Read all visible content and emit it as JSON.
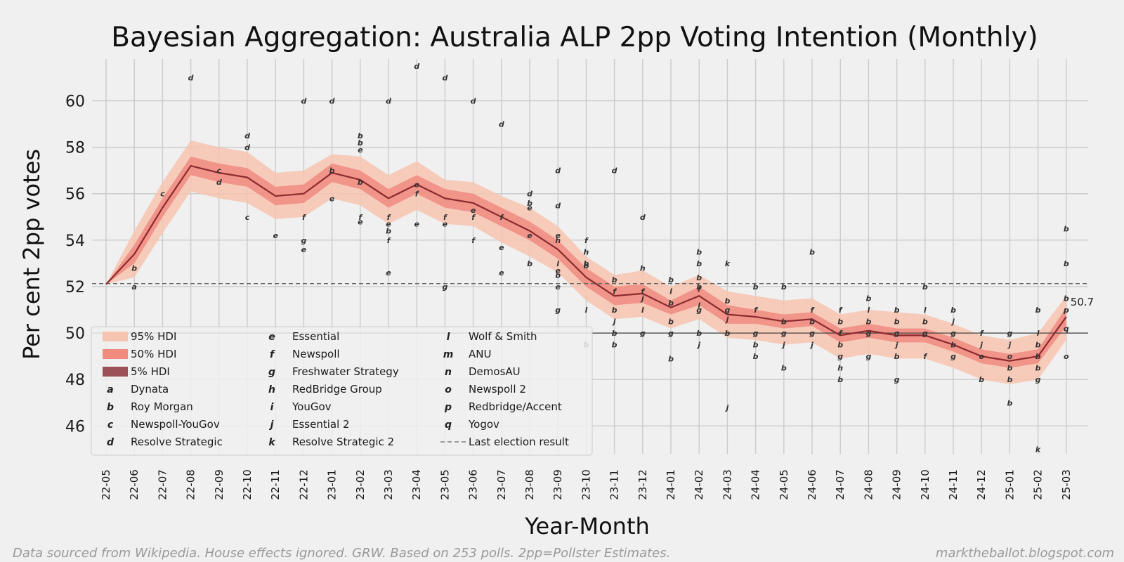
{
  "chart_data": {
    "type": "line",
    "title": "Bayesian Aggregation: Australia ALP 2pp Voting Intention (Monthly)",
    "xlabel": "Year-Month",
    "ylabel": "Per cent 2pp votes",
    "ylim": [
      44.8,
      61.8
    ],
    "yticks": [
      46,
      48,
      50,
      52,
      54,
      56,
      58,
      60
    ],
    "grid": true,
    "legend_position": "lower-left",
    "categories": [
      "22-05",
      "22-06",
      "22-07",
      "22-08",
      "22-09",
      "22-10",
      "22-11",
      "22-12",
      "23-01",
      "23-02",
      "23-03",
      "23-04",
      "23-05",
      "23-06",
      "23-07",
      "23-08",
      "23-09",
      "23-10",
      "23-11",
      "23-12",
      "24-01",
      "24-02",
      "24-03",
      "24-04",
      "24-05",
      "24-06",
      "24-07",
      "24-08",
      "24-09",
      "24-10",
      "24-11",
      "24-12",
      "25-01",
      "25-02",
      "25-03"
    ],
    "median": [
      52.1,
      53.4,
      55.4,
      57.2,
      56.9,
      56.7,
      55.9,
      56.0,
      56.9,
      56.6,
      55.8,
      56.4,
      55.8,
      55.6,
      55.0,
      54.4,
      53.6,
      52.4,
      51.6,
      51.7,
      51.1,
      51.6,
      50.8,
      50.7,
      50.5,
      50.6,
      49.9,
      50.1,
      49.9,
      49.9,
      49.5,
      49.0,
      48.8,
      49.0,
      50.7
    ],
    "hdi95_low": [
      52.1,
      52.4,
      54.3,
      56.1,
      55.8,
      55.6,
      54.9,
      55.0,
      55.8,
      55.5,
      54.7,
      55.3,
      54.7,
      54.6,
      53.9,
      53.3,
      52.6,
      51.4,
      50.6,
      50.7,
      50.2,
      50.6,
      49.8,
      49.7,
      49.5,
      49.6,
      48.9,
      49.1,
      48.9,
      48.9,
      48.5,
      48.0,
      47.8,
      48.0,
      49.7
    ],
    "hdi95_high": [
      52.1,
      54.4,
      56.5,
      58.3,
      58.0,
      57.8,
      56.9,
      57.0,
      57.7,
      57.6,
      56.8,
      57.4,
      56.6,
      56.5,
      55.9,
      55.4,
      54.6,
      53.3,
      52.5,
      52.7,
      52.0,
      52.5,
      51.8,
      51.6,
      51.4,
      51.5,
      50.8,
      51.0,
      50.9,
      50.8,
      50.4,
      49.9,
      49.7,
      50.0,
      51.6
    ],
    "hdi50_low": [
      52.1,
      53.0,
      55.0,
      56.8,
      56.5,
      56.3,
      55.5,
      55.6,
      56.5,
      56.2,
      55.4,
      56.0,
      55.4,
      55.2,
      54.6,
      54.0,
      53.2,
      52.0,
      51.2,
      51.3,
      50.8,
      51.2,
      50.4,
      50.4,
      50.2,
      50.3,
      49.6,
      49.8,
      49.6,
      49.6,
      49.2,
      48.7,
      48.5,
      48.7,
      50.3
    ],
    "hdi50_high": [
      52.1,
      53.8,
      55.8,
      57.6,
      57.3,
      57.1,
      56.3,
      56.4,
      57.3,
      57.0,
      56.2,
      56.8,
      56.2,
      56.0,
      55.4,
      54.8,
      54.0,
      52.8,
      52.0,
      52.1,
      51.4,
      52.0,
      51.2,
      51.0,
      50.8,
      50.9,
      50.2,
      50.4,
      50.2,
      50.2,
      49.8,
      49.3,
      49.1,
      49.3,
      51.1
    ],
    "last_election": 52.13,
    "reference_line": 50,
    "end_label": "50.7",
    "polls": [
      {
        "i": 1,
        "y": 52.0,
        "c": "a"
      },
      {
        "i": 1,
        "y": 52.8,
        "c": "b"
      },
      {
        "i": 2,
        "y": 56.0,
        "c": "c"
      },
      {
        "i": 3,
        "y": 61.0,
        "c": "d"
      },
      {
        "i": 4,
        "y": 57.0,
        "c": "c"
      },
      {
        "i": 4,
        "y": 56.5,
        "c": "d"
      },
      {
        "i": 5,
        "y": 58.5,
        "c": "d"
      },
      {
        "i": 5,
        "y": 58.0,
        "c": "d"
      },
      {
        "i": 5,
        "y": 55.0,
        "c": "c"
      },
      {
        "i": 6,
        "y": 54.2,
        "c": "e"
      },
      {
        "i": 7,
        "y": 60.0,
        "c": "d"
      },
      {
        "i": 7,
        "y": 55.0,
        "c": "f"
      },
      {
        "i": 7,
        "y": 54.0,
        "c": "g"
      },
      {
        "i": 7,
        "y": 53.6,
        "c": "e"
      },
      {
        "i": 8,
        "y": 60.0,
        "c": "d"
      },
      {
        "i": 8,
        "y": 57.0,
        "c": "b"
      },
      {
        "i": 8,
        "y": 55.8,
        "c": "e"
      },
      {
        "i": 9,
        "y": 58.5,
        "c": "b"
      },
      {
        "i": 9,
        "y": 58.2,
        "c": "b"
      },
      {
        "i": 9,
        "y": 57.9,
        "c": "e"
      },
      {
        "i": 9,
        "y": 56.5,
        "c": "b"
      },
      {
        "i": 9,
        "y": 55.0,
        "c": "f"
      },
      {
        "i": 9,
        "y": 54.8,
        "c": "e"
      },
      {
        "i": 10,
        "y": 60.0,
        "c": "d"
      },
      {
        "i": 10,
        "y": 55.0,
        "c": "f"
      },
      {
        "i": 10,
        "y": 54.7,
        "c": "e"
      },
      {
        "i": 10,
        "y": 54.4,
        "c": "b"
      },
      {
        "i": 10,
        "y": 54.0,
        "c": "f"
      },
      {
        "i": 10,
        "y": 52.6,
        "c": "e"
      },
      {
        "i": 11,
        "y": 61.5,
        "c": "d"
      },
      {
        "i": 11,
        "y": 56.4,
        "c": "e"
      },
      {
        "i": 11,
        "y": 56.0,
        "c": "f"
      },
      {
        "i": 11,
        "y": 54.7,
        "c": "e"
      },
      {
        "i": 12,
        "y": 61.0,
        "c": "d"
      },
      {
        "i": 12,
        "y": 55.0,
        "c": "f"
      },
      {
        "i": 12,
        "y": 54.7,
        "c": "e"
      },
      {
        "i": 12,
        "y": 52.0,
        "c": "g"
      },
      {
        "i": 13,
        "y": 60.0,
        "c": "d"
      },
      {
        "i": 13,
        "y": 55.3,
        "c": "e"
      },
      {
        "i": 13,
        "y": 55.0,
        "c": "f"
      },
      {
        "i": 13,
        "y": 54.0,
        "c": "f"
      },
      {
        "i": 14,
        "y": 59.0,
        "c": "d"
      },
      {
        "i": 14,
        "y": 55.0,
        "c": "f"
      },
      {
        "i": 14,
        "y": 53.7,
        "c": "e"
      },
      {
        "i": 14,
        "y": 52.6,
        "c": "e"
      },
      {
        "i": 15,
        "y": 56.0,
        "c": "d"
      },
      {
        "i": 15,
        "y": 55.6,
        "c": "b"
      },
      {
        "i": 15,
        "y": 55.4,
        "c": "e"
      },
      {
        "i": 15,
        "y": 54.2,
        "c": "e"
      },
      {
        "i": 15,
        "y": 53.0,
        "c": "b"
      },
      {
        "i": 16,
        "y": 57.0,
        "c": "d"
      },
      {
        "i": 16,
        "y": 55.5,
        "c": "d"
      },
      {
        "i": 16,
        "y": 54.2,
        "c": "e"
      },
      {
        "i": 16,
        "y": 54.0,
        "c": "h"
      },
      {
        "i": 16,
        "y": 53.0,
        "c": "l"
      },
      {
        "i": 16,
        "y": 52.7,
        "c": "e"
      },
      {
        "i": 16,
        "y": 52.5,
        "c": "b"
      },
      {
        "i": 16,
        "y": 52.0,
        "c": "e"
      },
      {
        "i": 16,
        "y": 51.0,
        "c": "g"
      },
      {
        "i": 17,
        "y": 54.0,
        "c": "f"
      },
      {
        "i": 17,
        "y": 53.5,
        "c": "h"
      },
      {
        "i": 17,
        "y": 53.0,
        "c": "b"
      },
      {
        "i": 17,
        "y": 52.9,
        "c": "b"
      },
      {
        "i": 17,
        "y": 51.0,
        "c": "l"
      },
      {
        "i": 17,
        "y": 49.5,
        "c": "b"
      },
      {
        "i": 18,
        "y": 57.0,
        "c": "d"
      },
      {
        "i": 18,
        "y": 52.3,
        "c": "b"
      },
      {
        "i": 18,
        "y": 51.8,
        "c": "f"
      },
      {
        "i": 18,
        "y": 51.0,
        "c": "b"
      },
      {
        "i": 18,
        "y": 50.5,
        "c": "j"
      },
      {
        "i": 18,
        "y": 50.0,
        "c": "b"
      },
      {
        "i": 18,
        "y": 49.5,
        "c": "b"
      },
      {
        "i": 19,
        "y": 55.0,
        "c": "d"
      },
      {
        "i": 19,
        "y": 52.8,
        "c": "h"
      },
      {
        "i": 19,
        "y": 51.8,
        "c": "f"
      },
      {
        "i": 19,
        "y": 51.5,
        "c": "j"
      },
      {
        "i": 19,
        "y": 51.0,
        "c": "l"
      },
      {
        "i": 19,
        "y": 50.0,
        "c": "g"
      },
      {
        "i": 20,
        "y": 52.3,
        "c": "b"
      },
      {
        "i": 20,
        "y": 51.8,
        "c": "l"
      },
      {
        "i": 20,
        "y": 51.3,
        "c": "b"
      },
      {
        "i": 20,
        "y": 50.5,
        "c": "b"
      },
      {
        "i": 20,
        "y": 50.0,
        "c": "g"
      },
      {
        "i": 20,
        "y": 48.9,
        "c": "b"
      },
      {
        "i": 21,
        "y": 53.5,
        "c": "b"
      },
      {
        "i": 21,
        "y": 53.0,
        "c": "b"
      },
      {
        "i": 21,
        "y": 52.4,
        "c": "b"
      },
      {
        "i": 21,
        "y": 52.0,
        "c": "b"
      },
      {
        "i": 21,
        "y": 51.9,
        "c": "f"
      },
      {
        "i": 21,
        "y": 51.2,
        "c": "l"
      },
      {
        "i": 21,
        "y": 51.0,
        "c": "g"
      },
      {
        "i": 21,
        "y": 50.0,
        "c": "b"
      },
      {
        "i": 21,
        "y": 49.5,
        "c": "j"
      },
      {
        "i": 22,
        "y": 53.0,
        "c": "k"
      },
      {
        "i": 22,
        "y": 51.4,
        "c": "b"
      },
      {
        "i": 22,
        "y": 51.0,
        "c": "g"
      },
      {
        "i": 22,
        "y": 50.6,
        "c": "j"
      },
      {
        "i": 22,
        "y": 50.0,
        "c": "b"
      },
      {
        "i": 22,
        "y": 46.8,
        "c": "j"
      },
      {
        "i": 23,
        "y": 52.0,
        "c": "b"
      },
      {
        "i": 23,
        "y": 51.0,
        "c": "f"
      },
      {
        "i": 23,
        "y": 50.0,
        "c": "g"
      },
      {
        "i": 23,
        "y": 49.5,
        "c": "b"
      },
      {
        "i": 23,
        "y": 49.0,
        "c": "b"
      },
      {
        "i": 24,
        "y": 52.0,
        "c": "b"
      },
      {
        "i": 24,
        "y": 50.5,
        "c": "b"
      },
      {
        "i": 24,
        "y": 50.0,
        "c": "g"
      },
      {
        "i": 24,
        "y": 49.5,
        "c": "j"
      },
      {
        "i": 24,
        "y": 48.5,
        "c": "b"
      },
      {
        "i": 25,
        "y": 53.5,
        "c": "b"
      },
      {
        "i": 25,
        "y": 51.0,
        "c": "f"
      },
      {
        "i": 25,
        "y": 50.5,
        "c": "b"
      },
      {
        "i": 25,
        "y": 50.0,
        "c": "g"
      },
      {
        "i": 25,
        "y": 49.5,
        "c": "j"
      },
      {
        "i": 26,
        "y": 51.0,
        "c": "f"
      },
      {
        "i": 26,
        "y": 50.5,
        "c": "b"
      },
      {
        "i": 26,
        "y": 50.0,
        "c": "f"
      },
      {
        "i": 26,
        "y": 49.5,
        "c": "b"
      },
      {
        "i": 26,
        "y": 49.0,
        "c": "g"
      },
      {
        "i": 26,
        "y": 48.5,
        "c": "h"
      },
      {
        "i": 26,
        "y": 48.0,
        "c": "b"
      },
      {
        "i": 27,
        "y": 51.5,
        "c": "b"
      },
      {
        "i": 27,
        "y": 51.0,
        "c": "l"
      },
      {
        "i": 27,
        "y": 50.5,
        "c": "b"
      },
      {
        "i": 27,
        "y": 50.0,
        "c": "g"
      },
      {
        "i": 27,
        "y": 49.0,
        "c": "g"
      },
      {
        "i": 28,
        "y": 51.0,
        "c": "b"
      },
      {
        "i": 28,
        "y": 50.5,
        "c": "b"
      },
      {
        "i": 28,
        "y": 50.0,
        "c": "g"
      },
      {
        "i": 28,
        "y": 49.5,
        "c": "j"
      },
      {
        "i": 28,
        "y": 49.0,
        "c": "b"
      },
      {
        "i": 28,
        "y": 48.0,
        "c": "g"
      },
      {
        "i": 29,
        "y": 52.0,
        "c": "b"
      },
      {
        "i": 29,
        "y": 51.0,
        "c": "l"
      },
      {
        "i": 29,
        "y": 50.5,
        "c": "b"
      },
      {
        "i": 29,
        "y": 50.0,
        "c": "g"
      },
      {
        "i": 29,
        "y": 49.0,
        "c": "f"
      },
      {
        "i": 30,
        "y": 51.0,
        "c": "b"
      },
      {
        "i": 30,
        "y": 50.5,
        "c": "j"
      },
      {
        "i": 30,
        "y": 50.0,
        "c": "g"
      },
      {
        "i": 30,
        "y": 49.5,
        "c": "b"
      },
      {
        "i": 30,
        "y": 49.0,
        "c": "g"
      },
      {
        "i": 31,
        "y": 50.0,
        "c": "f"
      },
      {
        "i": 31,
        "y": 49.5,
        "c": "j"
      },
      {
        "i": 31,
        "y": 49.0,
        "c": "o"
      },
      {
        "i": 31,
        "y": 48.0,
        "c": "b"
      },
      {
        "i": 32,
        "y": 50.0,
        "c": "g"
      },
      {
        "i": 32,
        "y": 49.5,
        "c": "j"
      },
      {
        "i": 32,
        "y": 49.0,
        "c": "o"
      },
      {
        "i": 32,
        "y": 48.5,
        "c": "b"
      },
      {
        "i": 32,
        "y": 48.0,
        "c": "b"
      },
      {
        "i": 32,
        "y": 47.0,
        "c": "b"
      },
      {
        "i": 33,
        "y": 51.0,
        "c": "b"
      },
      {
        "i": 33,
        "y": 50.0,
        "c": "l"
      },
      {
        "i": 33,
        "y": 49.5,
        "c": "b"
      },
      {
        "i": 33,
        "y": 49.0,
        "c": "b"
      },
      {
        "i": 33,
        "y": 48.5,
        "c": "b"
      },
      {
        "i": 33,
        "y": 48.0,
        "c": "g"
      },
      {
        "i": 33,
        "y": 45.0,
        "c": "k"
      },
      {
        "i": 34,
        "y": 54.5,
        "c": "b"
      },
      {
        "i": 34,
        "y": 53.0,
        "c": "b"
      },
      {
        "i": 34,
        "y": 51.5,
        "c": "b"
      },
      {
        "i": 34,
        "y": 51.0,
        "c": "p"
      },
      {
        "i": 34,
        "y": 50.2,
        "c": "q"
      },
      {
        "i": 34,
        "y": 49.0,
        "c": "o"
      }
    ]
  },
  "legend": {
    "bands": [
      {
        "key": "hdi95",
        "label": "95% HDI",
        "color": "#f7c4b0"
      },
      {
        "key": "hdi50",
        "label": "50% HDI",
        "color": "#f08b80"
      },
      {
        "key": "hdi5",
        "label": "5% HDI",
        "color": "#9c5058"
      }
    ],
    "pollsters": [
      {
        "code": "a",
        "name": "Dynata"
      },
      {
        "code": "b",
        "name": "Roy Morgan"
      },
      {
        "code": "c",
        "name": "Newspoll-YouGov"
      },
      {
        "code": "d",
        "name": "Resolve Strategic"
      },
      {
        "code": "e",
        "name": "Essential"
      },
      {
        "code": "f",
        "name": "Newspoll"
      },
      {
        "code": "g",
        "name": "Freshwater Strategy"
      },
      {
        "code": "h",
        "name": "RedBridge Group"
      },
      {
        "code": "i",
        "name": "YouGov"
      },
      {
        "code": "j",
        "name": "Essential 2"
      },
      {
        "code": "k",
        "name": "Resolve Strategic 2"
      },
      {
        "code": "l",
        "name": "Wolf & Smith"
      },
      {
        "code": "m",
        "name": "ANU"
      },
      {
        "code": "n",
        "name": "DemosAU"
      },
      {
        "code": "o",
        "name": "Newspoll 2"
      },
      {
        "code": "p",
        "name": "Redbridge/Accent"
      },
      {
        "code": "q",
        "name": "Yogov"
      }
    ],
    "election_label": "Last election result"
  },
  "colors": {
    "median_line": "#8b2a2e",
    "band95": "#f7c4b0",
    "band50": "#f08b80",
    "background": "#f0f0f0",
    "grid": "#cbcbcb"
  },
  "footer": {
    "left": "Data sourced from Wikipedia. House effects ignored. GRW. Based on 253 polls. 2pp=Pollster Estimates.",
    "right": "marktheballot.blogspot.com"
  }
}
